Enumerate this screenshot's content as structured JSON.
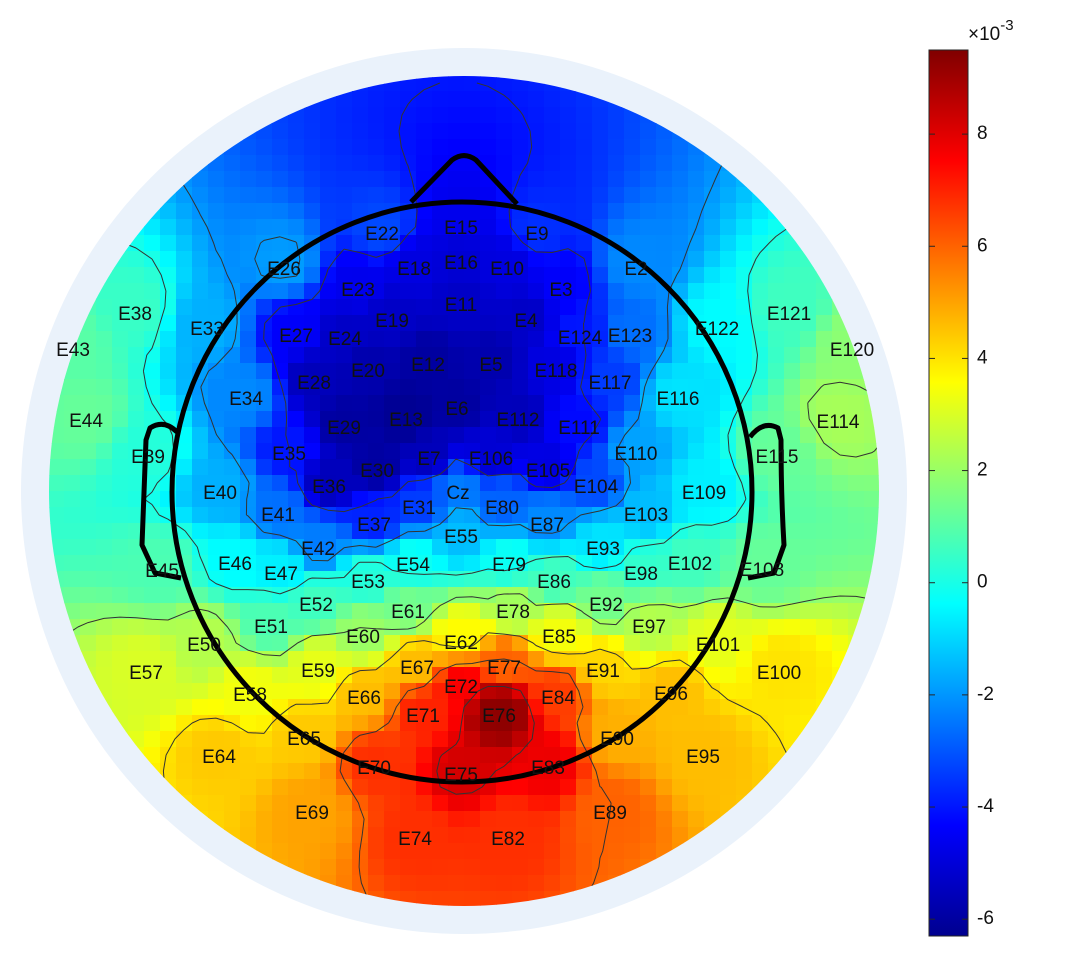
{
  "chart_data": {
    "type": "heatmap",
    "subtype": "eeg-topographic-map",
    "colormap": "jet",
    "colorbar": {
      "location": "right",
      "range": [
        -6.3,
        9.5
      ],
      "ticks": [
        {
          "value": 8,
          "label": "8"
        },
        {
          "value": 6,
          "label": "6"
        },
        {
          "value": 4,
          "label": "4"
        },
        {
          "value": 2,
          "label": "2"
        },
        {
          "value": 0,
          "label": "0"
        },
        {
          "value": -2,
          "label": "-2"
        },
        {
          "value": -4,
          "label": "-4"
        },
        {
          "value": -6,
          "label": "-6"
        }
      ],
      "exponent_base": "×10",
      "exponent_power": "-3"
    },
    "peaks": [
      {
        "description": "posterior positive maximum",
        "near": "E76",
        "value": 9.3
      },
      {
        "description": "frontal-central negative minimum",
        "near": "E13",
        "value": -6.0
      }
    ],
    "contour_lines": true,
    "electrodes": [
      {
        "label": "E15",
        "value": -4.6
      },
      {
        "label": "E9",
        "value": -3.6
      },
      {
        "label": "E22",
        "value": -3.2
      },
      {
        "label": "E16",
        "value": -5.0
      },
      {
        "label": "E10",
        "value": -4.8
      },
      {
        "label": "E18",
        "value": -4.8
      },
      {
        "label": "E26",
        "value": -1.9
      },
      {
        "label": "E2",
        "value": -2.2
      },
      {
        "label": "E23",
        "value": -4.6
      },
      {
        "label": "E3",
        "value": -4.4
      },
      {
        "label": "E11",
        "value": -5.2
      },
      {
        "label": "E38",
        "value": 0.5
      },
      {
        "label": "E121",
        "value": 0.6
      },
      {
        "label": "E19",
        "value": -5.2
      },
      {
        "label": "E4",
        "value": -5.2
      },
      {
        "label": "E33",
        "value": -1.6
      },
      {
        "label": "E27",
        "value": -4.4
      },
      {
        "label": "E24",
        "value": -5.2
      },
      {
        "label": "E124",
        "value": -4.0
      },
      {
        "label": "E123",
        "value": -2.6
      },
      {
        "label": "E122",
        "value": -0.4
      },
      {
        "label": "E43",
        "value": 1.0
      },
      {
        "label": "E120",
        "value": 1.8
      },
      {
        "label": "E12",
        "value": -5.8
      },
      {
        "label": "E5",
        "value": -5.6
      },
      {
        "label": "E20",
        "value": -5.6
      },
      {
        "label": "E118",
        "value": -4.8
      },
      {
        "label": "E28",
        "value": -5.4
      },
      {
        "label": "E117",
        "value": -3.4
      },
      {
        "label": "E34",
        "value": -2.2
      },
      {
        "label": "E116",
        "value": -0.8
      },
      {
        "label": "E6",
        "value": -5.8
      },
      {
        "label": "E44",
        "value": 1.2
      },
      {
        "label": "E13",
        "value": -6.0
      },
      {
        "label": "E112",
        "value": -5.4
      },
      {
        "label": "E114",
        "value": 2.2
      },
      {
        "label": "E29",
        "value": -5.8
      },
      {
        "label": "E111",
        "value": -4.2
      },
      {
        "label": "E39",
        "value": 0.2
      },
      {
        "label": "E35",
        "value": -4.0
      },
      {
        "label": "E7",
        "value": -5.4
      },
      {
        "label": "E106",
        "value": -5.0
      },
      {
        "label": "E110",
        "value": -1.8
      },
      {
        "label": "E115",
        "value": 1.2
      },
      {
        "label": "E30",
        "value": -5.8
      },
      {
        "label": "E105",
        "value": -4.8
      },
      {
        "label": "E36",
        "value": -5.4
      },
      {
        "label": "E104",
        "value": -3.2
      },
      {
        "label": "Cz",
        "value": -2.4
      },
      {
        "label": "E40",
        "value": -1.6
      },
      {
        "label": "E109",
        "value": -0.6
      },
      {
        "label": "E31",
        "value": -3.4
      },
      {
        "label": "E80",
        "value": -2.8
      },
      {
        "label": "E41",
        "value": -2.6
      },
      {
        "label": "E103",
        "value": -1.4
      },
      {
        "label": "E37",
        "value": -3.8
      },
      {
        "label": "E87",
        "value": -2.2
      },
      {
        "label": "E55",
        "value": -1.4
      },
      {
        "label": "E42",
        "value": -2.4
      },
      {
        "label": "E93",
        "value": -0.8
      },
      {
        "label": "E46",
        "value": -0.4
      },
      {
        "label": "E54",
        "value": -0.2
      },
      {
        "label": "E79",
        "value": -0.2
      },
      {
        "label": "E102",
        "value": 0.6
      },
      {
        "label": "E108",
        "value": 1.2
      },
      {
        "label": "E45",
        "value": 0.8
      },
      {
        "label": "E47",
        "value": -0.6
      },
      {
        "label": "E98",
        "value": 0.4
      },
      {
        "label": "E53",
        "value": 0.2
      },
      {
        "label": "E86",
        "value": 0.6
      },
      {
        "label": "E92",
        "value": 1.4
      },
      {
        "label": "E52",
        "value": 0.6
      },
      {
        "label": "E61",
        "value": 1.4
      },
      {
        "label": "E78",
        "value": 2.2
      },
      {
        "label": "E51",
        "value": 0.8
      },
      {
        "label": "E97",
        "value": 2.4
      },
      {
        "label": "E60",
        "value": 2.0
      },
      {
        "label": "E62",
        "value": 3.6
      },
      {
        "label": "E85",
        "value": 3.4
      },
      {
        "label": "E50",
        "value": 2.4
      },
      {
        "label": "E101",
        "value": 3.2
      },
      {
        "label": "E67",
        "value": 4.6
      },
      {
        "label": "E77",
        "value": 6.0
      },
      {
        "label": "E91",
        "value": 4.2
      },
      {
        "label": "E57",
        "value": 3.0
      },
      {
        "label": "E59",
        "value": 3.2
      },
      {
        "label": "E100",
        "value": 4.0
      },
      {
        "label": "E72",
        "value": 7.6
      },
      {
        "label": "E58",
        "value": 3.4
      },
      {
        "label": "E66",
        "value": 4.6
      },
      {
        "label": "E84",
        "value": 6.6
      },
      {
        "label": "E96",
        "value": 4.6
      },
      {
        "label": "E71",
        "value": 7.0
      },
      {
        "label": "E76",
        "value": 9.3
      },
      {
        "label": "E65",
        "value": 4.4
      },
      {
        "label": "E90",
        "value": 4.8
      },
      {
        "label": "E64",
        "value": 4.4
      },
      {
        "label": "E95",
        "value": 4.6
      },
      {
        "label": "E70",
        "value": 6.8
      },
      {
        "label": "E75",
        "value": 8.2
      },
      {
        "label": "E83",
        "value": 7.8
      },
      {
        "label": "E69",
        "value": 5.0
      },
      {
        "label": "E89",
        "value": 6.0
      },
      {
        "label": "E74",
        "value": 6.8
      },
      {
        "label": "E82",
        "value": 6.8
      }
    ]
  }
}
